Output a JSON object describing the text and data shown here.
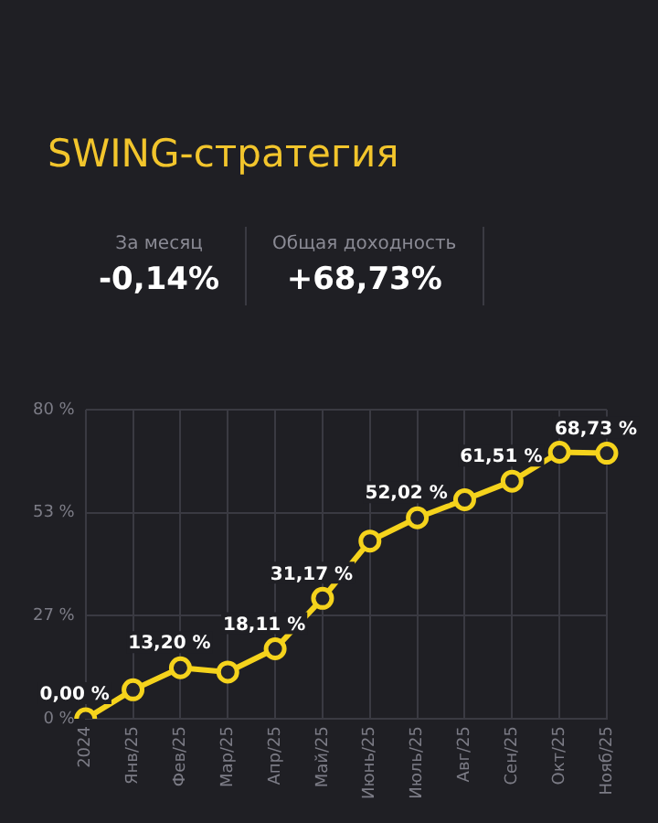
{
  "chart_data": {
    "type": "line",
    "title": "SWING-стратегия",
    "annotations": [
      "За месяц",
      "-0,14%",
      "Общая доходность",
      "+68,73%"
    ],
    "categories": [
      "2024",
      "Янв/25",
      "Фев/25",
      "Мар/25",
      "Апр/25",
      "Май/25",
      "Июнь/25",
      "Июль/25",
      "Авг/25",
      "Сен/25",
      "Окт/25",
      "Нояб/25"
    ],
    "series": [
      {
        "color": "#f5d31c",
        "values": [
          0,
          7.5,
          13.2,
          12.1,
          18.11,
          31.17,
          46.0,
          52.02,
          56.7,
          61.51,
          69.0,
          68.73
        ],
        "value_labels": [
          "0,00 %",
          null,
          "13,20 %",
          null,
          "18,11 %",
          "31,17 %",
          null,
          "52,02 %",
          null,
          "61,51 %",
          null,
          "68,73 %"
        ]
      }
    ],
    "ylim": [
      0,
      80
    ],
    "yticks": [
      {
        "value": 0,
        "label": "0 %"
      },
      {
        "value": 26.67,
        "label": "27 %"
      },
      {
        "value": 53.33,
        "label": "53 %"
      },
      {
        "value": 80,
        "label": "80 %"
      }
    ],
    "grid": true,
    "marker": "circle",
    "line_style": "solid",
    "legend": false
  }
}
